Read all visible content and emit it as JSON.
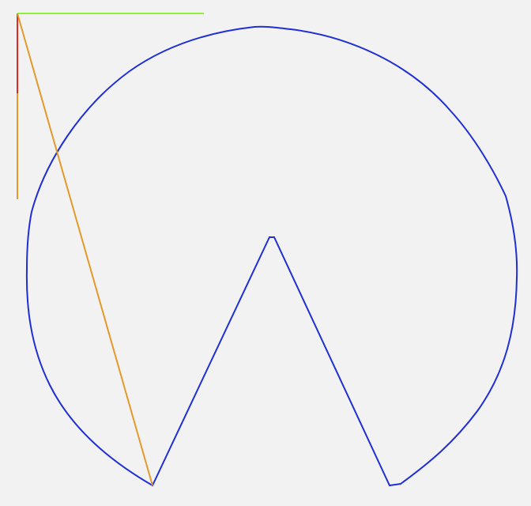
{
  "canvas": {
    "background_color": "#f2f2f2"
  },
  "colors": {
    "shape_stroke": "#1f2fd6",
    "axis_x": "#8ef03a",
    "axis_y": "#e22a1f",
    "axis_y_extension": "#e39a2b",
    "guide_line": "#e39a2b"
  }
}
